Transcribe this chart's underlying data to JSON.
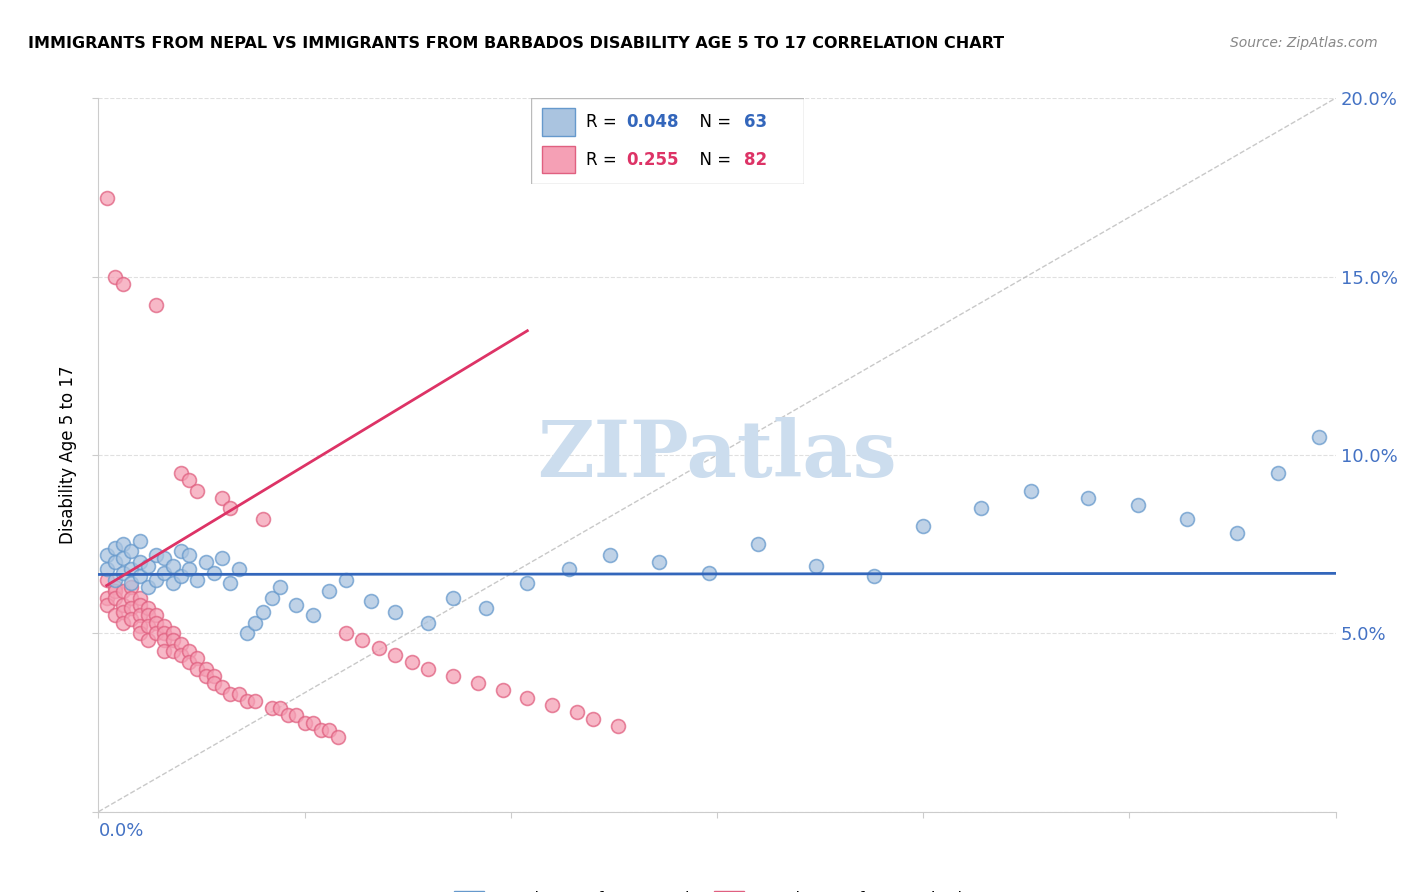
{
  "title": "IMMIGRANTS FROM NEPAL VS IMMIGRANTS FROM BARBADOS DISABILITY AGE 5 TO 17 CORRELATION CHART",
  "source": "Source: ZipAtlas.com",
  "ylabel": "Disability Age 5 to 17",
  "xlim": [
    0.0,
    0.15
  ],
  "ylim": [
    0.0,
    0.2
  ],
  "nepal_R": 0.048,
  "nepal_N": 63,
  "barbados_R": 0.255,
  "barbados_N": 82,
  "nepal_color": "#aac4e0",
  "barbados_color": "#f5a0b5",
  "nepal_edge_color": "#6699cc",
  "barbados_edge_color": "#e06080",
  "nepal_trend_color": "#3366bb",
  "barbados_trend_color": "#dd3366",
  "diagonal_color": "#bbbbbb",
  "watermark_color": "#ccddee",
  "ytick_color": "#4472c4",
  "xtick_color": "#4472c4",
  "grid_color": "#e0e0e0",
  "nepal_x": [
    0.001,
    0.001,
    0.002,
    0.002,
    0.002,
    0.003,
    0.003,
    0.003,
    0.004,
    0.004,
    0.004,
    0.005,
    0.005,
    0.005,
    0.006,
    0.006,
    0.007,
    0.007,
    0.008,
    0.008,
    0.009,
    0.009,
    0.01,
    0.01,
    0.011,
    0.011,
    0.012,
    0.013,
    0.014,
    0.015,
    0.016,
    0.017,
    0.018,
    0.019,
    0.02,
    0.021,
    0.022,
    0.024,
    0.026,
    0.028,
    0.03,
    0.033,
    0.036,
    0.04,
    0.043,
    0.047,
    0.052,
    0.057,
    0.062,
    0.068,
    0.074,
    0.08,
    0.087,
    0.094,
    0.1,
    0.107,
    0.113,
    0.12,
    0.126,
    0.132,
    0.138,
    0.143,
    0.148
  ],
  "nepal_y": [
    0.068,
    0.072,
    0.065,
    0.07,
    0.074,
    0.067,
    0.071,
    0.075,
    0.064,
    0.068,
    0.073,
    0.066,
    0.07,
    0.076,
    0.063,
    0.069,
    0.065,
    0.072,
    0.067,
    0.071,
    0.064,
    0.069,
    0.066,
    0.073,
    0.068,
    0.072,
    0.065,
    0.07,
    0.067,
    0.071,
    0.064,
    0.068,
    0.05,
    0.053,
    0.056,
    0.06,
    0.063,
    0.058,
    0.055,
    0.062,
    0.065,
    0.059,
    0.056,
    0.053,
    0.06,
    0.057,
    0.064,
    0.068,
    0.072,
    0.07,
    0.067,
    0.075,
    0.069,
    0.066,
    0.08,
    0.085,
    0.09,
    0.088,
    0.086,
    0.082,
    0.078,
    0.095,
    0.105
  ],
  "barbados_x": [
    0.001,
    0.001,
    0.001,
    0.001,
    0.002,
    0.002,
    0.002,
    0.002,
    0.002,
    0.003,
    0.003,
    0.003,
    0.003,
    0.003,
    0.004,
    0.004,
    0.004,
    0.004,
    0.005,
    0.005,
    0.005,
    0.005,
    0.005,
    0.006,
    0.006,
    0.006,
    0.006,
    0.007,
    0.007,
    0.007,
    0.007,
    0.008,
    0.008,
    0.008,
    0.008,
    0.009,
    0.009,
    0.009,
    0.01,
    0.01,
    0.01,
    0.011,
    0.011,
    0.011,
    0.012,
    0.012,
    0.012,
    0.013,
    0.013,
    0.014,
    0.014,
    0.015,
    0.015,
    0.016,
    0.016,
    0.017,
    0.018,
    0.019,
    0.02,
    0.021,
    0.022,
    0.023,
    0.024,
    0.025,
    0.026,
    0.027,
    0.028,
    0.029,
    0.03,
    0.032,
    0.034,
    0.036,
    0.038,
    0.04,
    0.043,
    0.046,
    0.049,
    0.052,
    0.055,
    0.058,
    0.06,
    0.063
  ],
  "barbados_y": [
    0.172,
    0.065,
    0.06,
    0.058,
    0.15,
    0.063,
    0.062,
    0.06,
    0.055,
    0.148,
    0.062,
    0.058,
    0.056,
    0.053,
    0.063,
    0.06,
    0.057,
    0.054,
    0.06,
    0.058,
    0.055,
    0.052,
    0.05,
    0.057,
    0.055,
    0.052,
    0.048,
    0.142,
    0.055,
    0.053,
    0.05,
    0.052,
    0.05,
    0.048,
    0.045,
    0.05,
    0.048,
    0.045,
    0.095,
    0.047,
    0.044,
    0.093,
    0.045,
    0.042,
    0.09,
    0.043,
    0.04,
    0.04,
    0.038,
    0.038,
    0.036,
    0.088,
    0.035,
    0.085,
    0.033,
    0.033,
    0.031,
    0.031,
    0.082,
    0.029,
    0.029,
    0.027,
    0.027,
    0.025,
    0.025,
    0.023,
    0.023,
    0.021,
    0.05,
    0.048,
    0.046,
    0.044,
    0.042,
    0.04,
    0.038,
    0.036,
    0.034,
    0.032,
    0.03,
    0.028,
    0.026,
    0.024
  ]
}
